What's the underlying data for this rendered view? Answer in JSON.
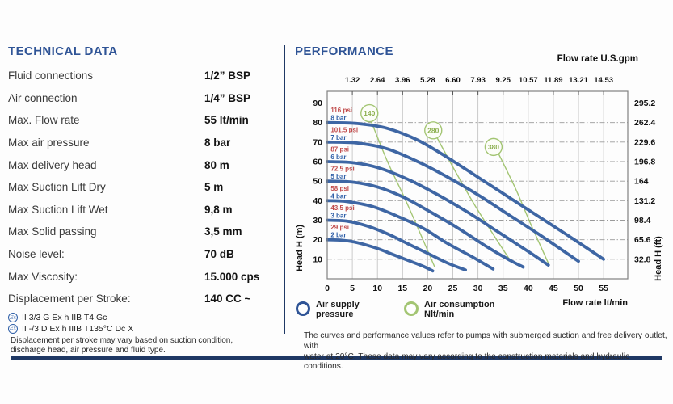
{
  "technical_data": {
    "title": "TECHNICAL DATA",
    "rows": [
      {
        "label": "Fluid connections",
        "value": "1/2” BSP"
      },
      {
        "label": "Air connection",
        "value": "1/4” BSP"
      },
      {
        "label": "Max. Flow rate",
        "value": "55 lt/min"
      },
      {
        "label": "Max air pressure",
        "value": "8 bar"
      },
      {
        "label": "Max delivery head",
        "value": "80 m"
      },
      {
        "label": "Max Suction Lift Dry",
        "value": "5 m"
      },
      {
        "label": "Max Suction Lift Wet",
        "value": "9,8 m"
      },
      {
        "label": "Max Solid passing",
        "value": "3,5 mm"
      },
      {
        "label": "Noise level:",
        "value": "70 dB"
      },
      {
        "label": "Max Viscosity:",
        "value": "15.000 cps"
      },
      {
        "label": "Displacement per Stroke:",
        "value": "140 CC ~"
      }
    ],
    "certifications": [
      "II 3/3 G Ex h IIB T4 Gc",
      "II -/3 D Ex h IIIB T135°C Dc X"
    ],
    "cert_icon_text": "Ex",
    "footnote": "Displacement per stroke may vary based on suction condition,\ndischarge head, air pressure and fluid type."
  },
  "performance": {
    "title": "PERFORMANCE",
    "legend": [
      {
        "label": "Air supply\npressure",
        "color": "#2f5496"
      },
      {
        "label": "Air consumption\nNlt/min",
        "color": "#a3c573"
      }
    ],
    "footer": "The curves and performance values refer to pumps with submerged suction and free delivery outlet, with\nwater at 20°C. These data may vary according to the construction materials and hydraulic conditions."
  },
  "chart_data": {
    "type": "line",
    "title": "PERFORMANCE",
    "x_axis": {
      "bottom_title": "Flow rate  lt/min",
      "bottom_ticks": [
        0,
        5,
        10,
        15,
        20,
        25,
        30,
        35,
        40,
        45,
        50,
        55
      ],
      "top_title": "Flow rate U.S.gpm",
      "top_ticks": [
        "1.32",
        "2.64",
        "3.96",
        "5.28",
        "6.60",
        "7.93",
        "9.25",
        "10.57",
        "11.89",
        "13.21",
        "14.53"
      ],
      "top_tick_positions": [
        5,
        10,
        15,
        20,
        25,
        30,
        35,
        40,
        45,
        50,
        55
      ],
      "range": [
        0,
        59.8
      ]
    },
    "y_axis": {
      "left_title": "Head H (m)",
      "left_ticks": [
        90,
        80,
        70,
        60,
        50,
        40,
        30,
        20,
        10
      ],
      "right_title": "Head H (ft)",
      "right_ticks": [
        "295.2",
        "262.4",
        "229.6",
        "196.8",
        "164",
        "131.2",
        "98.4",
        "65.6",
        "32.8"
      ],
      "right_tick_heads": [
        90,
        80,
        70,
        60,
        50,
        40,
        30,
        20,
        10
      ],
      "range": [
        0,
        96
      ]
    },
    "grid": {
      "vertical": "solid",
      "horizontal": "dash-dot"
    },
    "series": [
      {
        "name": "8 bar",
        "psi_label": "116 psi",
        "bar_label": "8 bar",
        "points": [
          [
            0,
            80
          ],
          [
            6,
            79.5
          ],
          [
            12,
            77
          ],
          [
            18,
            71
          ],
          [
            24,
            62
          ],
          [
            30,
            52
          ],
          [
            36,
            42
          ],
          [
            42,
            32
          ],
          [
            48,
            22
          ],
          [
            55,
            10
          ]
        ]
      },
      {
        "name": "7 bar",
        "psi_label": "101.5 psi",
        "bar_label": "7 bar",
        "points": [
          [
            0,
            70
          ],
          [
            6,
            69.5
          ],
          [
            12,
            66.5
          ],
          [
            18,
            60
          ],
          [
            24,
            52
          ],
          [
            30,
            43
          ],
          [
            36,
            33
          ],
          [
            42,
            23
          ],
          [
            46,
            16
          ],
          [
            50,
            9
          ]
        ]
      },
      {
        "name": "6 bar",
        "psi_label": "87 psi",
        "bar_label": "6 bar",
        "points": [
          [
            0,
            60
          ],
          [
            5,
            59.5
          ],
          [
            10,
            57
          ],
          [
            16,
            51
          ],
          [
            22,
            43
          ],
          [
            28,
            34
          ],
          [
            34,
            24
          ],
          [
            40,
            14
          ],
          [
            44,
            7
          ]
        ]
      },
      {
        "name": "5 bar",
        "psi_label": "72.5 psi",
        "bar_label": "5 bar",
        "points": [
          [
            0,
            50
          ],
          [
            5,
            49.5
          ],
          [
            10,
            47
          ],
          [
            15,
            42
          ],
          [
            20,
            35
          ],
          [
            26,
            26
          ],
          [
            32,
            16
          ],
          [
            36,
            10
          ],
          [
            39,
            6
          ]
        ]
      },
      {
        "name": "4 bar",
        "psi_label": "58 psi",
        "bar_label": "4 bar",
        "points": [
          [
            0,
            40
          ],
          [
            4,
            39.5
          ],
          [
            9,
            37
          ],
          [
            14,
            32
          ],
          [
            19,
            26
          ],
          [
            24,
            18
          ],
          [
            29,
            11
          ],
          [
            33,
            5
          ]
        ]
      },
      {
        "name": "3 bar",
        "psi_label": "43.5 psi",
        "bar_label": "3 bar",
        "points": [
          [
            0,
            30
          ],
          [
            4,
            29.5
          ],
          [
            8,
            27
          ],
          [
            12,
            23
          ],
          [
            16,
            18
          ],
          [
            20,
            13
          ],
          [
            24,
            8
          ],
          [
            27.5,
            4.5
          ]
        ]
      },
      {
        "name": "2 bar",
        "psi_label": "29 psi",
        "bar_label": "2 bar",
        "points": [
          [
            0,
            20
          ],
          [
            3,
            19.7
          ],
          [
            6,
            18.5
          ],
          [
            10,
            15.5
          ],
          [
            13,
            12.5
          ],
          [
            16,
            9.5
          ],
          [
            19,
            6.5
          ],
          [
            21,
            4
          ]
        ]
      }
    ],
    "air_consumption": [
      {
        "label": "140",
        "circle": [
          8.4,
          84.8
        ],
        "points": [
          [
            8.7,
            81
          ],
          [
            12,
            60
          ],
          [
            16,
            38
          ],
          [
            21.4,
            6
          ]
        ]
      },
      {
        "label": "280",
        "circle": [
          21.1,
          76.0
        ],
        "points": [
          [
            21.7,
            73
          ],
          [
            25.5,
            55
          ],
          [
            30,
            35
          ],
          [
            36.5,
            9
          ]
        ]
      },
      {
        "label": "380",
        "circle": [
          33.1,
          67.5
        ],
        "points": [
          [
            34.1,
            64
          ],
          [
            37.5,
            46
          ],
          [
            40.5,
            28
          ],
          [
            44,
            8
          ]
        ]
      }
    ],
    "style": {
      "curve_color": "#3e66a4",
      "air_color": "#a3c573",
      "air_text_color": "#8cb04f",
      "psi_label_color": "#c04a4a",
      "bar_label_color": "#3060a8",
      "grid_v_color": "#c4c4c4",
      "grid_h_color": "#9a9a9a",
      "border_color": "#808080",
      "tick_text_color": "#111111"
    }
  }
}
